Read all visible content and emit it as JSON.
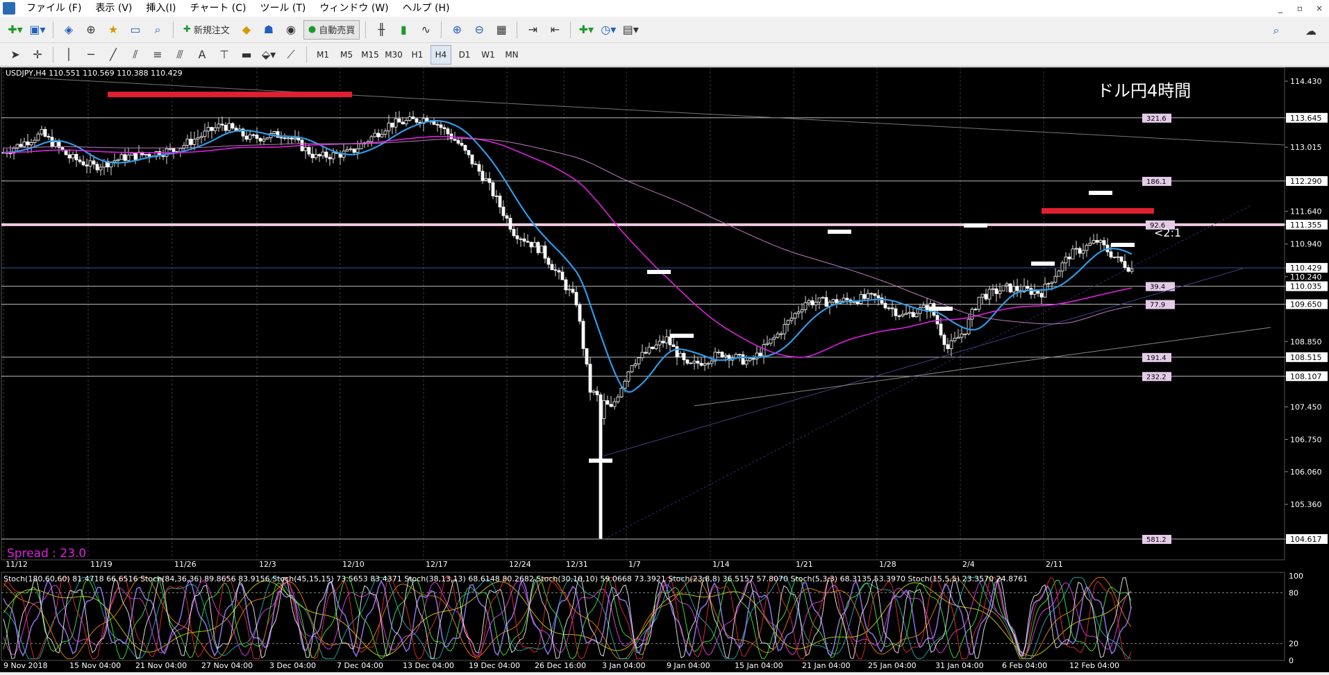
{
  "menu": {
    "items": [
      "ファイル (F)",
      "表示 (V)",
      "挿入(I)",
      "チャート (C)",
      "ツール (T)",
      "ウィンドウ (W)",
      "ヘルプ (H)"
    ],
    "window_controls": [
      "_",
      "▫",
      "×"
    ]
  },
  "toolbar": {
    "new_order_label": "新規注文",
    "auto_trading_label": "自動売買",
    "timeframes": [
      "M1",
      "M5",
      "M15",
      "M30",
      "H1",
      "H4",
      "D1",
      "W1",
      "MN"
    ],
    "active_timeframe": "H4"
  },
  "chart": {
    "header": "USDJPY,H4  110.551 110.569 110.388 110.429",
    "annotation_title": "ドル円4時間",
    "ratio_label": "<2:1",
    "spread_label": "Spread : 23.0",
    "price_labels": [
      "114.430",
      "113.645",
      "113.015",
      "112.290",
      "111.640",
      "111.355",
      "110.940",
      "110.429",
      "110.240",
      "110.035",
      "109.650",
      "108.850",
      "108.515",
      "108.107",
      "107.450",
      "106.750",
      "106.060",
      "105.360",
      "104.617"
    ],
    "hline_labels": [
      "321.6",
      "186.1",
      "92.6",
      "39.4",
      "77.9",
      "191.4",
      "232.2",
      "581.2"
    ],
    "date_labels": [
      "11/12",
      "11/19",
      "11/26",
      "12/3",
      "12/10",
      "12/17",
      "12/24",
      "12/31",
      "1/7",
      "1/14",
      "1/21",
      "1/28",
      "2/4",
      "2/11"
    ],
    "colors": {
      "bull_candle": "#ffffff",
      "bear_candle": "#ffffff",
      "ma_fast": "#2d9be8",
      "ma_mid": "#e020e0",
      "ma_slow": "#c07ac0",
      "marker_red": "#e0202f",
      "spread": "#e020e0"
    }
  },
  "stoch": {
    "header": "Stoch(180,60,60) 81.4718 66.6516  Stoch(84,36,36) 89.8656 83.9156  Stoch(45,15,15) 73.5653 83.4371  Stoch(38,13,13) 68.6148 80.2682  Stoch(30,10,10) 59.0668 73.3921  Stoch(23,8,8) 36.5157 57.8070  Stoch(5,3,3) 68.3135 53.3970  Stoch(15,5,5) 23.3570 24.8761",
    "levels": [
      "100",
      "80",
      "20",
      "0"
    ],
    "date_labels": [
      "9 Nov 2018",
      "15 Nov 04:00",
      "21 Nov 04:00",
      "27 Nov 04:00",
      "3 Dec 04:00",
      "7 Dec 04:00",
      "13 Dec 04:00",
      "19 Dec 04:00",
      "26 Dec 16:00",
      "3 Jan 04:00",
      "9 Jan 04:00",
      "15 Jan 04:00",
      "21 Jan 04:00",
      "25 Jan 04:00",
      "31 Jan 04:00",
      "6 Feb 04:00",
      "12 Feb 04:00"
    ]
  }
}
